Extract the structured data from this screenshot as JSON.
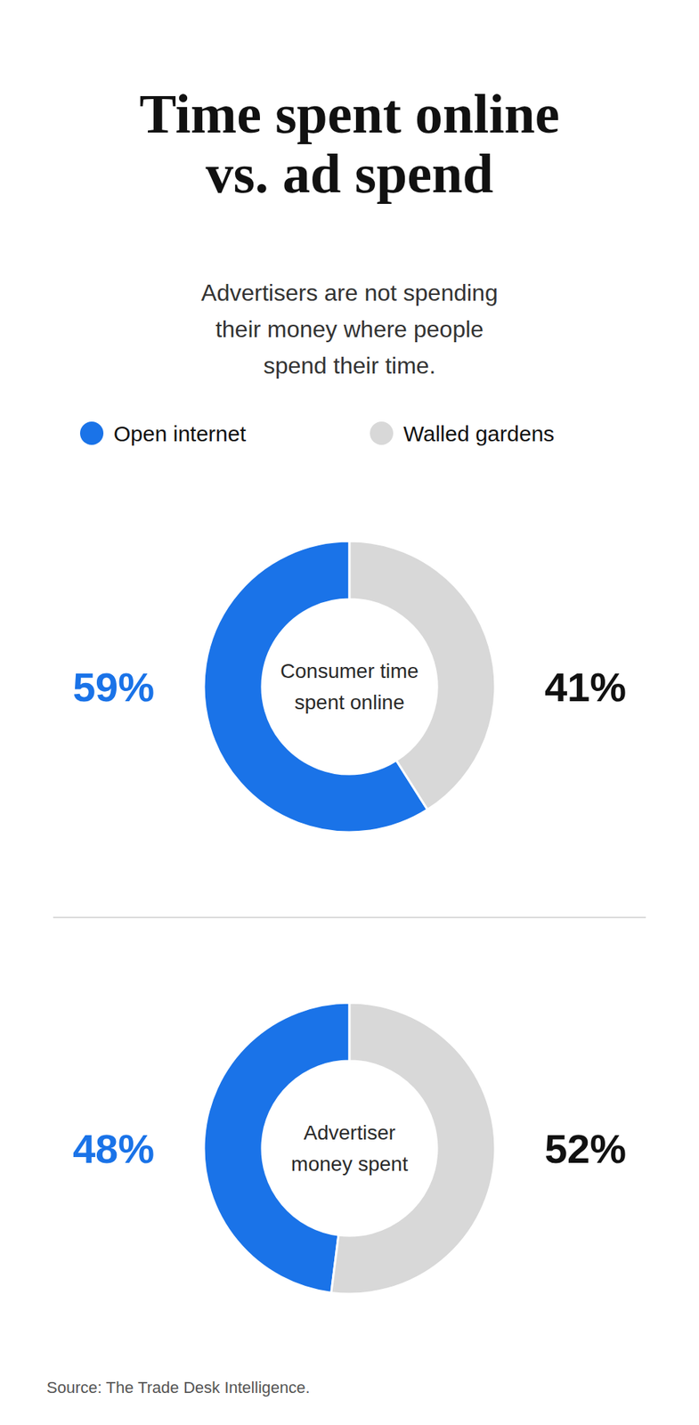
{
  "title": "Time spent online\nvs. ad spend",
  "subtitle": "Advertisers are not spending\ntheir money where people\nspend their time.",
  "source": "Source: The Trade Desk Intelligence.",
  "chart_data": [
    {
      "type": "donut",
      "title": "Consumer time\nspent online",
      "categories": [
        "Open internet",
        "Walled gardens"
      ],
      "values": [
        59,
        41
      ],
      "value_labels": [
        "59%",
        "41%"
      ],
      "colors": [
        "#1A73E8",
        "#D8D8D8"
      ],
      "data_labels": true,
      "legend": "top"
    },
    {
      "type": "donut",
      "title": "Advertiser\nmoney spent",
      "categories": [
        "Open internet",
        "Walled gardens"
      ],
      "values": [
        48,
        52
      ],
      "value_labels": [
        "48%",
        "52%"
      ],
      "colors": [
        "#1A73E8",
        "#D8D8D8"
      ],
      "data_labels": true
    }
  ]
}
